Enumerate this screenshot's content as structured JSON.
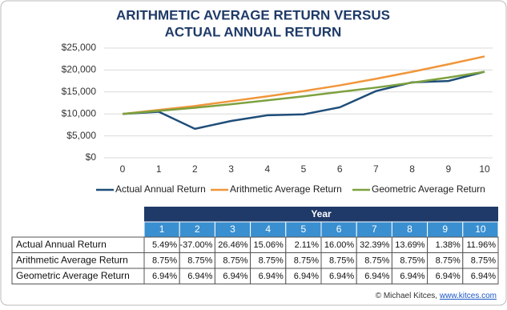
{
  "chart_data": {
    "type": "line",
    "title": [
      "ARITHMETIC AVERAGE RETURN VERSUS",
      "ACTUAL ANNUAL RETURN"
    ],
    "x": [
      0,
      1,
      2,
      3,
      4,
      5,
      6,
      7,
      8,
      9,
      10
    ],
    "xlim": [
      0,
      10
    ],
    "xticks": [
      0,
      1,
      2,
      3,
      4,
      5,
      6,
      7,
      8,
      9,
      10
    ],
    "ylim": [
      0,
      25000
    ],
    "yticks": [
      {
        "value": 0,
        "label": "$0"
      },
      {
        "value": 5000,
        "label": "$5,000"
      },
      {
        "value": 10000,
        "label": "$10,000"
      },
      {
        "value": 15000,
        "label": "$15,000"
      },
      {
        "value": 20000,
        "label": "$20,000"
      },
      {
        "value": 25000,
        "label": "$25,000"
      }
    ],
    "grid": true,
    "legend": "bottom",
    "series": [
      {
        "name": "Actual Annual Return",
        "color": "#1f4e79",
        "values": [
          10000,
          10500,
          6600,
          8400,
          9700,
          9900,
          11500,
          15200,
          17200,
          17500,
          19600
        ]
      },
      {
        "name": "Arithmetic Average Return",
        "color": "#f0963a",
        "values": [
          10000,
          10900,
          11800,
          12900,
          14000,
          15200,
          16500,
          18000,
          19600,
          21300,
          23100
        ]
      },
      {
        "name": "Geometric Average Return",
        "color": "#7da13f",
        "values": [
          10000,
          10700,
          11400,
          12200,
          13100,
          14000,
          15000,
          16000,
          17100,
          18300,
          19600
        ]
      }
    ]
  },
  "table": {
    "header": "Year",
    "columns": [
      1,
      2,
      3,
      4,
      5,
      6,
      7,
      8,
      9,
      10
    ],
    "rows": [
      {
        "label": "Actual Annual Return",
        "cells": [
          "5.49%",
          "-37.00%",
          "26.46%",
          "15.06%",
          "2.11%",
          "16.00%",
          "32.39%",
          "13.69%",
          "1.38%",
          "11.96%"
        ]
      },
      {
        "label": "Arithmetic Average Return",
        "cells": [
          "8.75%",
          "8.75%",
          "8.75%",
          "8.75%",
          "8.75%",
          "8.75%",
          "8.75%",
          "8.75%",
          "8.75%",
          "8.75%"
        ]
      },
      {
        "label": "Geometric Average Return",
        "cells": [
          "6.94%",
          "6.94%",
          "6.94%",
          "6.94%",
          "6.94%",
          "6.94%",
          "6.94%",
          "6.94%",
          "6.94%",
          "6.94%"
        ]
      }
    ]
  },
  "footer": {
    "text": "© Michael Kitces,",
    "link": "www.kitces.com"
  }
}
